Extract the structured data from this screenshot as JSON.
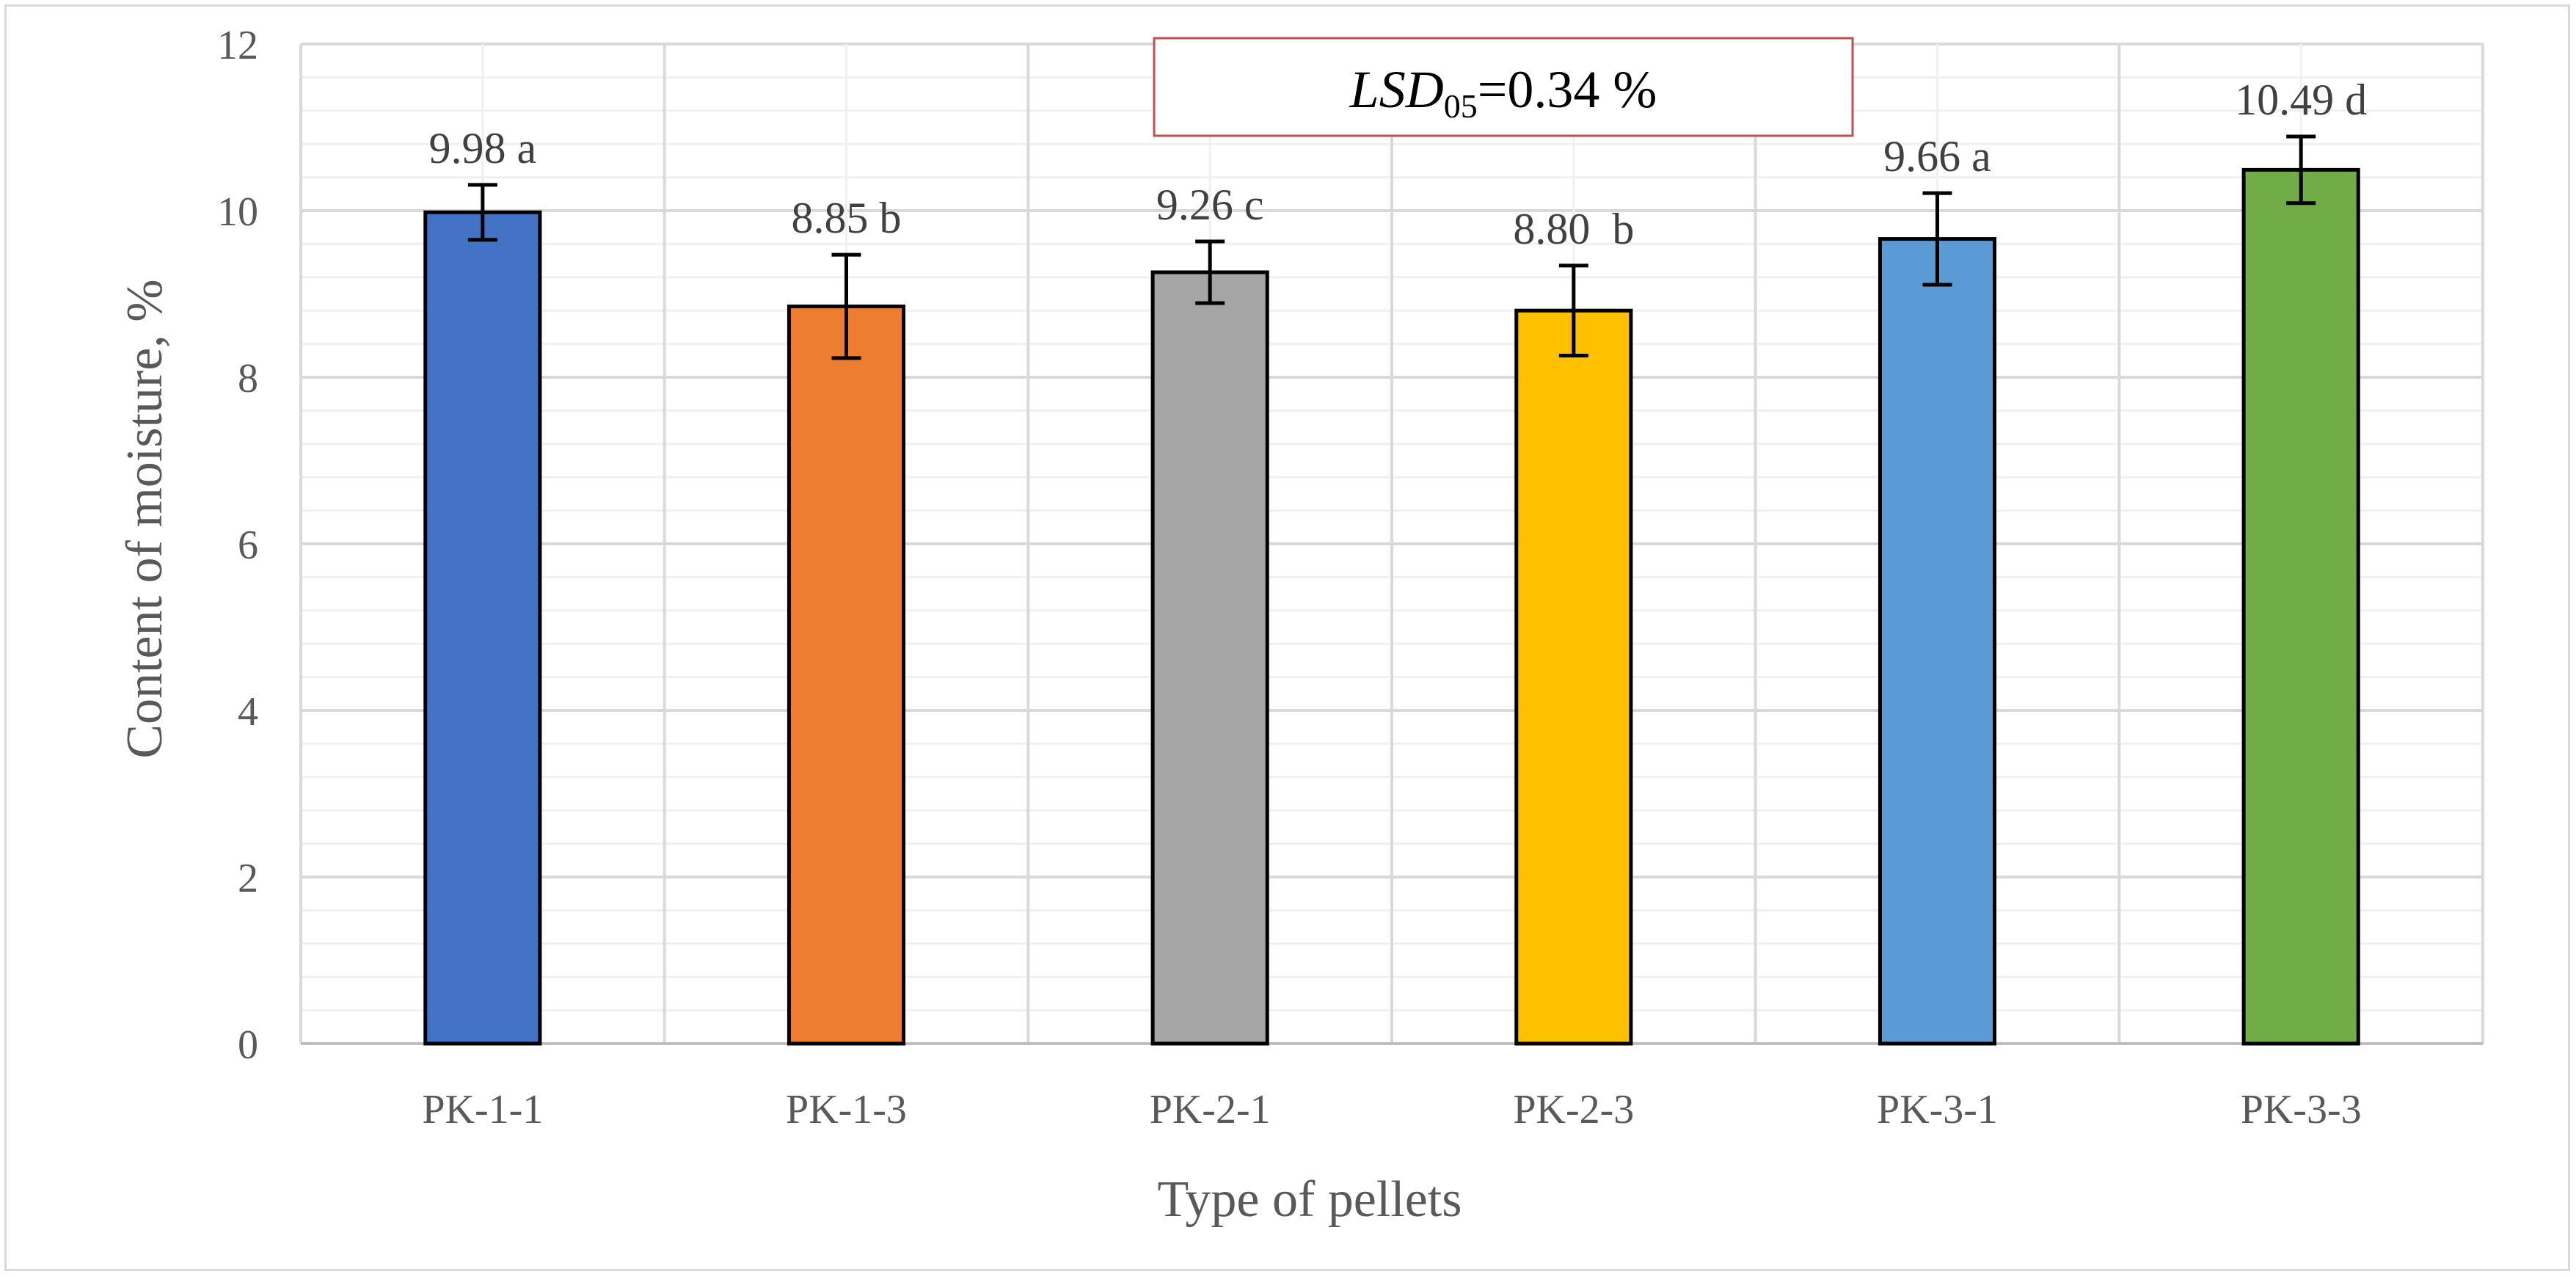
{
  "chart_data": {
    "type": "bar",
    "title": "",
    "xlabel": "Type of pellets",
    "ylabel": "Content of moisture, %",
    "ylim": [
      0,
      12
    ],
    "ytick_step": 2,
    "yticks": [
      "0",
      "2",
      "4",
      "6",
      "8",
      "10",
      "12"
    ],
    "grid": true,
    "categories": [
      "PK-1-1",
      "PK-1-3",
      "PK-2-1",
      "PK-2-3",
      "PK-3-1",
      "PK-3-3"
    ],
    "values": [
      9.98,
      8.85,
      9.26,
      8.8,
      9.66,
      10.49
    ],
    "error_bars": [
      0.33,
      0.62,
      0.37,
      0.54,
      0.55,
      0.4
    ],
    "data_labels": [
      "9.98 a",
      "8.85 b",
      "9.26 c",
      "8.80  b",
      "9.66 a",
      "10.49 d"
    ],
    "colors": [
      "#4472c4",
      "#ed7d31",
      "#a5a5a5",
      "#ffc000",
      "#5b9bd5",
      "#70ad47"
    ],
    "annotation": {
      "lsd_label": "LSD",
      "lsd_subscript": "05",
      "lsd_value": "=0.34 %",
      "border_color": "#c0504d"
    }
  }
}
